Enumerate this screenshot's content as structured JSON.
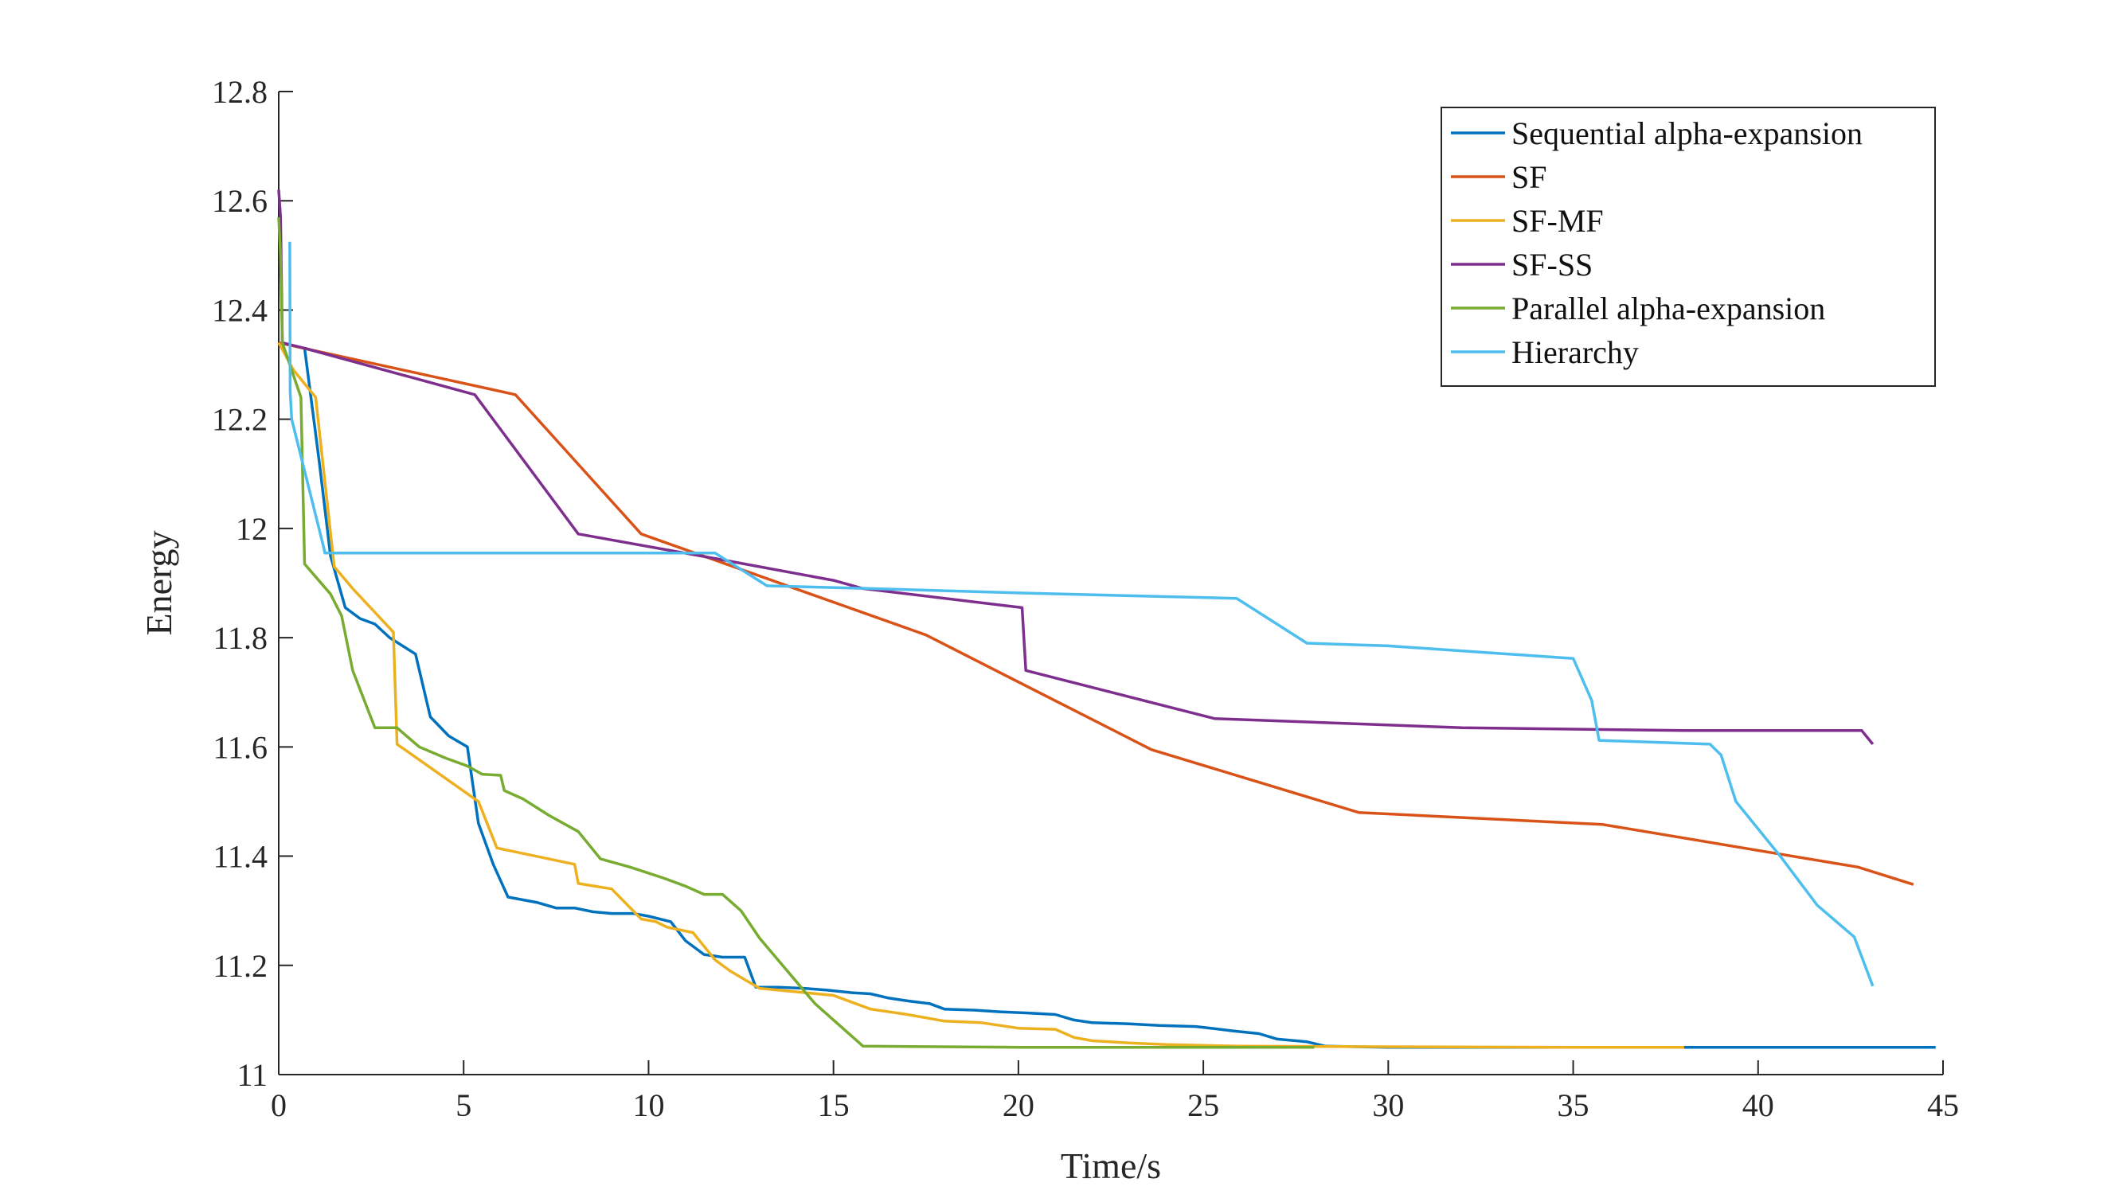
{
  "chart_data": {
    "type": "line",
    "title": "",
    "xlabel": "Time/s",
    "ylabel": "Energy",
    "xlim": [
      0,
      45
    ],
    "ylim": [
      11,
      12.8
    ],
    "xticks": [
      0,
      5,
      10,
      15,
      20,
      25,
      30,
      35,
      40,
      45
    ],
    "yticks": [
      11,
      11.2,
      11.4,
      11.6,
      11.8,
      12,
      12.2,
      12.4,
      12.6,
      12.8
    ],
    "xtick_labels": [
      "0",
      "5",
      "10",
      "15",
      "20",
      "25",
      "30",
      "35",
      "40",
      "45"
    ],
    "ytick_labels": [
      "11",
      "11.2",
      "11.4",
      "11.6",
      "11.8",
      "12",
      "12.2",
      "12.4",
      "12.6",
      "12.8"
    ],
    "grid": false,
    "legend_position": "top-right",
    "series": [
      {
        "name": "Sequential alpha-expansion",
        "color": "#0072BD",
        "x": [
          0,
          0.7,
          1.1,
          1.4,
          1.8,
          2.2,
          2.6,
          3.0,
          3.7,
          4.1,
          4.6,
          5.1,
          5.4,
          5.8,
          6.2,
          7.0,
          7.5,
          8.0,
          8.5,
          9.0,
          9.6,
          10.0,
          10.6,
          11.0,
          11.5,
          12.0,
          12.6,
          12.9,
          13.5,
          14.2,
          14.8,
          15.5,
          16.0,
          16.5,
          17.0,
          17.6,
          18.0,
          18.8,
          19.5,
          20.2,
          21.0,
          21.5,
          22.0,
          23.0,
          23.8,
          24.8,
          25.2,
          25.8,
          26.5,
          27.0,
          27.8,
          28.3,
          30,
          35,
          40,
          44.8
        ],
        "y": [
          12.34,
          12.33,
          12.12,
          11.95,
          11.855,
          11.835,
          11.825,
          11.8,
          11.77,
          11.655,
          11.62,
          11.6,
          11.46,
          11.385,
          11.325,
          11.315,
          11.305,
          11.305,
          11.298,
          11.295,
          11.295,
          11.29,
          11.28,
          11.245,
          11.22,
          11.215,
          11.215,
          11.16,
          11.16,
          11.158,
          11.155,
          11.15,
          11.148,
          11.14,
          11.135,
          11.13,
          11.12,
          11.118,
          11.115,
          11.113,
          11.11,
          11.1,
          11.095,
          11.093,
          11.09,
          11.088,
          11.085,
          11.08,
          11.075,
          11.065,
          11.06,
          11.052,
          11.05,
          11.05,
          11.05,
          11.05
        ]
      },
      {
        "name": "SF",
        "color": "#D95319",
        "x": [
          0,
          6.4,
          9.8,
          17.5,
          23.6,
          29.2,
          35.8,
          42.7,
          44.2
        ],
        "y": [
          12.34,
          12.245,
          11.99,
          11.805,
          11.595,
          11.48,
          11.458,
          11.38,
          11.348
        ]
      },
      {
        "name": "SF-MF",
        "color": "#EDB120",
        "x": [
          0,
          0.4,
          1.0,
          1.5,
          2.0,
          3.1,
          3.2,
          5.4,
          5.9,
          8.0,
          8.1,
          9.0,
          9.8,
          10.2,
          10.5,
          11.2,
          11.8,
          12.2,
          13.0,
          15.0,
          16.0,
          17.0,
          18.0,
          19.0,
          20.0,
          21.0,
          21.5,
          22.0,
          23.0,
          24.0,
          26.0,
          30.0,
          35.0,
          38.0
        ],
        "y": [
          12.34,
          12.29,
          12.24,
          11.93,
          11.89,
          11.81,
          11.605,
          11.5,
          11.415,
          11.385,
          11.35,
          11.34,
          11.285,
          11.28,
          11.27,
          11.26,
          11.21,
          11.19,
          11.158,
          11.145,
          11.12,
          11.11,
          11.098,
          11.095,
          11.085,
          11.083,
          11.068,
          11.062,
          11.058,
          11.055,
          11.052,
          11.051,
          11.05,
          11.05
        ]
      },
      {
        "name": "SF-SS",
        "color": "#7E2F8E",
        "x": [
          0,
          0.05,
          0.1,
          0.7,
          5.3,
          8.1,
          11.8,
          15.0,
          15.8,
          20.1,
          20.2,
          25.3,
          32.0,
          38.0,
          42.8,
          43.1
        ],
        "y": [
          12.62,
          12.57,
          12.34,
          12.33,
          12.245,
          11.99,
          11.945,
          11.905,
          11.89,
          11.855,
          11.74,
          11.652,
          11.635,
          11.63,
          11.63,
          11.605
        ]
      },
      {
        "name": "Parallel alpha-expansion",
        "color": "#77AC30",
        "x": [
          0,
          0.05,
          0.1,
          0.6,
          0.7,
          1.4,
          1.7,
          2.0,
          2.6,
          3.2,
          3.8,
          4.5,
          5.1,
          5.5,
          6.0,
          6.1,
          6.6,
          7.3,
          8.1,
          8.7,
          9.5,
          10.4,
          11.0,
          11.5,
          12.0,
          12.5,
          13.0,
          14.5,
          15.8,
          20.0,
          25.0,
          28.0
        ],
        "y": [
          12.57,
          12.5,
          12.34,
          12.24,
          11.935,
          11.88,
          11.84,
          11.74,
          11.635,
          11.635,
          11.6,
          11.58,
          11.565,
          11.55,
          11.548,
          11.52,
          11.505,
          11.475,
          11.445,
          11.395,
          11.38,
          11.36,
          11.345,
          11.33,
          11.33,
          11.3,
          11.25,
          11.13,
          11.052,
          11.05,
          11.05,
          11.05
        ]
      },
      {
        "name": "Hierarchy",
        "color": "#4DBEEE",
        "x": [
          0.3,
          0.31,
          0.35,
          1.2,
          1.25,
          10.0,
          11.8,
          13.2,
          16.0,
          20.0,
          25.9,
          27.8,
          30.0,
          35.0,
          35.5,
          35.7,
          38.7,
          39.0,
          39.4,
          40.6,
          41.6,
          42.6,
          43.1
        ],
        "y": [
          12.525,
          12.25,
          12.2,
          11.97,
          11.955,
          11.955,
          11.955,
          11.895,
          11.89,
          11.882,
          11.872,
          11.79,
          11.785,
          11.762,
          11.685,
          11.612,
          11.605,
          11.585,
          11.5,
          11.4,
          11.31,
          11.252,
          11.162
        ]
      }
    ]
  }
}
